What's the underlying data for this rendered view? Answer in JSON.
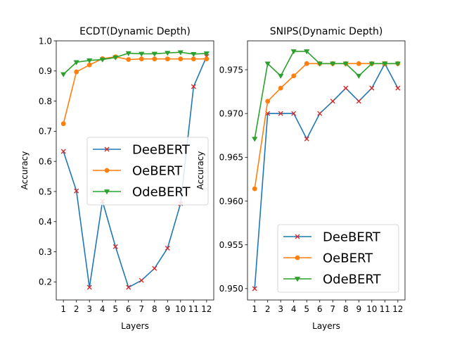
{
  "chart_data": [
    {
      "type": "line",
      "title": "ECDT(Dynamic Depth)",
      "xlabel": "Layers",
      "ylabel": "Accuracy",
      "x": [
        1,
        2,
        3,
        4,
        5,
        6,
        7,
        8,
        9,
        10,
        11,
        12
      ],
      "xticks": [
        "1",
        "2",
        "3",
        "4",
        "5",
        "6",
        "7",
        "8",
        "9",
        "10",
        "11",
        "12"
      ],
      "xlim": [
        0.45,
        12.55
      ],
      "ylim": [
        0.14,
        1.0
      ],
      "yticks": [
        0.2,
        0.3,
        0.4,
        0.5,
        0.6,
        0.7,
        0.8,
        0.9,
        1.0
      ],
      "ytick_labels": [
        "0.2",
        "0.3",
        "0.4",
        "0.5",
        "0.6",
        "0.7",
        "0.8",
        "0.9",
        "1.0"
      ],
      "legend": "center-right",
      "series": [
        {
          "name": "DeeBERT",
          "color": "#1f77b4",
          "marker": "x",
          "marker_color": "#d62728",
          "values": [
            0.633,
            0.502,
            0.182,
            0.468,
            0.317,
            0.182,
            0.205,
            0.245,
            0.312,
            0.46,
            0.848,
            0.948
          ]
        },
        {
          "name": "OeBERT",
          "color": "#ff7f0e",
          "marker": "circle",
          "marker_color": "#ff7f0e",
          "values": [
            0.725,
            0.897,
            0.92,
            0.941,
            0.947,
            0.938,
            0.94,
            0.94,
            0.94,
            0.94,
            0.94,
            0.94
          ]
        },
        {
          "name": "OdeBERT",
          "color": "#2ca02c",
          "marker": "triangle-down",
          "marker_color": "#2ca02c",
          "values": [
            0.889,
            0.929,
            0.935,
            0.938,
            0.945,
            0.959,
            0.957,
            0.957,
            0.96,
            0.962,
            0.956,
            0.958
          ]
        }
      ]
    },
    {
      "type": "line",
      "title": "SNIPS(Dynamic Depth)",
      "xlabel": "Layers",
      "ylabel": "Accuracy",
      "x": [
        1,
        2,
        3,
        4,
        5,
        6,
        7,
        8,
        9,
        10,
        11,
        12
      ],
      "xticks": [
        "1",
        "2",
        "3",
        "4",
        "5",
        "6",
        "7",
        "8",
        "9",
        "10",
        "11",
        "12"
      ],
      "xlim": [
        0.45,
        12.55
      ],
      "ylim": [
        0.9487,
        0.9783
      ],
      "yticks": [
        0.95,
        0.955,
        0.96,
        0.965,
        0.97,
        0.975
      ],
      "ytick_labels": [
        "0.950",
        "0.955",
        "0.960",
        "0.965",
        "0.970",
        "0.975"
      ],
      "legend": "lower-right",
      "series": [
        {
          "name": "DeeBERT",
          "color": "#1f77b4",
          "marker": "x",
          "marker_color": "#d62728",
          "values": [
            0.95,
            0.97,
            0.97,
            0.97,
            0.9671,
            0.97,
            0.9714,
            0.9729,
            0.9714,
            0.9729,
            0.9757,
            0.9729
          ]
        },
        {
          "name": "OeBERT",
          "color": "#ff7f0e",
          "marker": "circle",
          "marker_color": "#ff7f0e",
          "values": [
            0.9614,
            0.9714,
            0.9729,
            0.9743,
            0.9757,
            0.9757,
            0.9757,
            0.9757,
            0.9757,
            0.9757,
            0.9757,
            0.9757
          ]
        },
        {
          "name": "OdeBERT",
          "color": "#2ca02c",
          "marker": "triangle-down",
          "marker_color": "#2ca02c",
          "values": [
            0.9671,
            0.9757,
            0.9743,
            0.9771,
            0.9771,
            0.9757,
            0.9757,
            0.9757,
            0.9743,
            0.9757,
            0.9757,
            0.9757
          ]
        }
      ]
    }
  ]
}
